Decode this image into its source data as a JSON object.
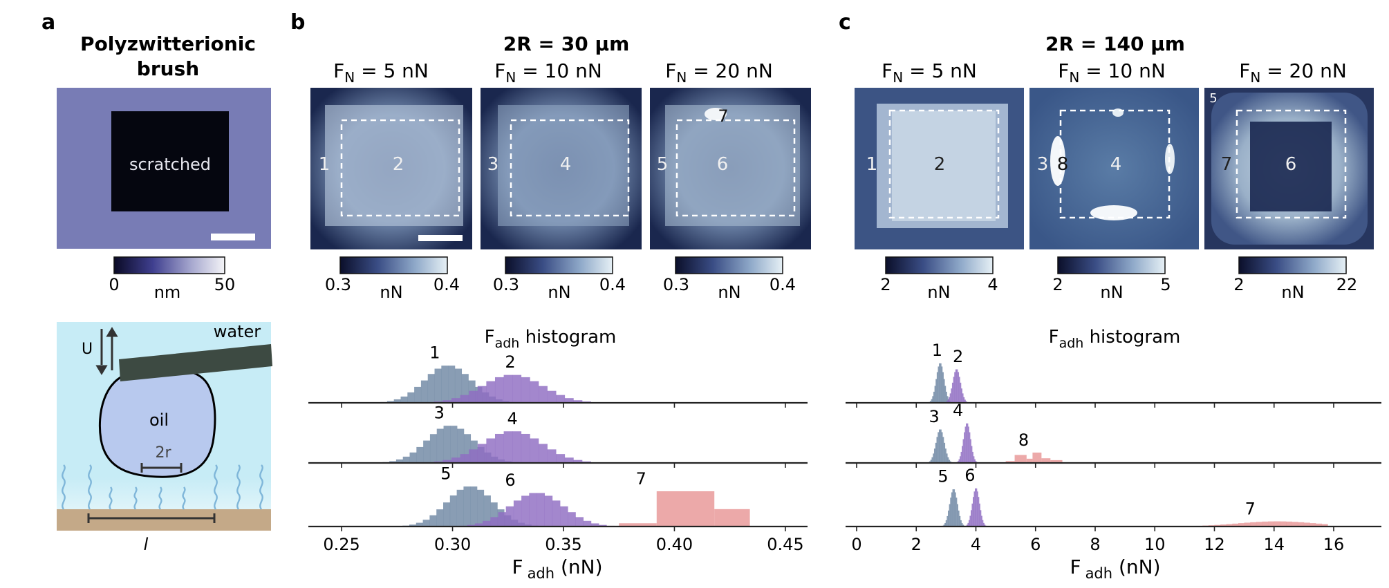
{
  "panel_a": {
    "letter": "a",
    "title_l1": "Polyzwitterionic",
    "title_l2": "brush",
    "scratched": "scratched",
    "cbar_min": "0",
    "cbar_unit": "nm",
    "cbar_max": "50",
    "schematic": {
      "water": "water",
      "U": "U",
      "oil": "oil",
      "r": "2r",
      "l": "l"
    }
  },
  "panel_b": {
    "letter": "b",
    "title": "2R = 30 µm",
    "maps": [
      {
        "fn_prefix": "F",
        "fn_sub": "N",
        "fn_value": " = 5 nN",
        "out_label": "1",
        "in_label": "2",
        "cbar_min": "0.3",
        "cbar_unit": "nN",
        "cbar_max": "0.4"
      },
      {
        "fn_prefix": "F",
        "fn_sub": "N",
        "fn_value": " = 10 nN",
        "out_label": "3",
        "in_label": "4",
        "cbar_min": "0.3",
        "cbar_unit": "nN",
        "cbar_max": "0.4"
      },
      {
        "fn_prefix": "F",
        "fn_sub": "N",
        "fn_value": " = 20 nN",
        "out_label": "5",
        "in_label": "6",
        "extra_label": "7",
        "cbar_min": "0.3",
        "cbar_unit": "nN",
        "cbar_max": "0.4"
      }
    ]
  },
  "panel_c": {
    "letter": "c",
    "title": "2R = 140 µm",
    "maps": [
      {
        "fn_prefix": "F",
        "fn_sub": "N",
        "fn_value": " = 5 nN",
        "out_label": "1",
        "in_label": "2",
        "cbar_min": "2",
        "cbar_unit": "nN",
        "cbar_max": "4"
      },
      {
        "fn_prefix": "F",
        "fn_sub": "N",
        "fn_value": " = 10 nN",
        "out_label": "3",
        "in_label": "4",
        "extra_label": "8",
        "cbar_min": "2",
        "cbar_unit": "nN",
        "cbar_max": "5"
      },
      {
        "fn_prefix": "F",
        "fn_sub": "N",
        "fn_value": " = 20 nN",
        "out_label": "7",
        "in_label": "6",
        "extra_label": "5",
        "cbar_min": "2",
        "cbar_unit": "nN",
        "cbar_max": "22"
      }
    ]
  },
  "colors": {
    "gray_blue": "#6f87a3",
    "purple": "#8f6cc2",
    "pink": "#e89696",
    "overlap": "#4a3f8c",
    "map_dark": "#18244a",
    "map_light": "#dbe9f2"
  },
  "chart_data": [
    {
      "type": "bar",
      "title_main": "F",
      "title_sub": "adh",
      "title_rest": " histogram",
      "xlabel_main": "F",
      "xlabel_sub": "adh",
      "xlabel_rest": " (nN)",
      "xlim": [
        0.24,
        0.46
      ],
      "xticks": [
        "0.25",
        "0.30",
        "0.35",
        "0.40",
        "0.45"
      ],
      "tick_values": [
        0.25,
        0.3,
        0.35,
        0.4,
        0.45
      ],
      "rows": [
        {
          "series": [
            {
              "name": "1",
              "color": "#6f87a3",
              "center": 0.298,
              "sd": 0.0105,
              "peak": 0.8,
              "label_x": 0.292
            },
            {
              "name": "2",
              "color": "#8f6cc2",
              "center": 0.327,
              "sd": 0.0135,
              "peak": 0.6,
              "label_x": 0.326
            }
          ]
        },
        {
          "series": [
            {
              "name": "3",
              "color": "#6f87a3",
              "center": 0.299,
              "sd": 0.0105,
              "peak": 0.8,
              "label_x": 0.294
            },
            {
              "name": "4",
              "color": "#8f6cc2",
              "center": 0.327,
              "sd": 0.0135,
              "peak": 0.68,
              "label_x": 0.327
            }
          ]
        },
        {
          "series": [
            {
              "name": "5",
              "color": "#6f87a3",
              "center": 0.308,
              "sd": 0.0105,
              "peak": 0.86,
              "label_x": 0.297
            },
            {
              "name": "6",
              "color": "#8f6cc2",
              "center": 0.338,
              "sd": 0.012,
              "peak": 0.72,
              "label_x": 0.326
            },
            {
              "name": "7",
              "color": "#e89696",
              "bars": [
                [
                  0.375,
                  0.392,
                  0.07
                ],
                [
                  0.392,
                  0.418,
                  0.75
                ],
                [
                  0.418,
                  0.434,
                  0.37
                ]
              ],
              "label_x": 0.385
            }
          ]
        }
      ]
    },
    {
      "type": "bar",
      "title_main": "F",
      "title_sub": "adh",
      "title_rest": " histogram",
      "xlabel_main": "F",
      "xlabel_sub": "adh",
      "xlabel_rest": " (nN)",
      "xlim": [
        0,
        17.6
      ],
      "xticks": [
        "0",
        "2",
        "4",
        "6",
        "8",
        "10",
        "12",
        "14",
        "16"
      ],
      "tick_values": [
        0,
        2,
        4,
        6,
        8,
        10,
        12,
        14,
        16
      ],
      "rows": [
        {
          "series": [
            {
              "name": "1",
              "color": "#6f87a3",
              "center": 2.8,
              "sd": 0.13,
              "peak": 0.85,
              "label_x": 2.7
            },
            {
              "name": "2",
              "color": "#8f6cc2",
              "center": 3.35,
              "sd": 0.13,
              "peak": 0.72,
              "label_x": 3.4
            }
          ]
        },
        {
          "series": [
            {
              "name": "3",
              "color": "#6f87a3",
              "center": 2.8,
              "sd": 0.14,
              "peak": 0.72,
              "label_x": 2.6
            },
            {
              "name": "4",
              "color": "#8f6cc2",
              "center": 3.7,
              "sd": 0.12,
              "peak": 0.85,
              "label_x": 3.4
            },
            {
              "name": "8",
              "color": "#e89696",
              "bars": [
                [
                  5.0,
                  5.3,
                  0.04
                ],
                [
                  5.3,
                  5.7,
                  0.17
                ],
                [
                  5.7,
                  5.9,
                  0.09
                ],
                [
                  5.9,
                  6.2,
                  0.22
                ],
                [
                  6.2,
                  6.5,
                  0.1
                ],
                [
                  6.5,
                  6.9,
                  0.06
                ]
              ],
              "label_x": 5.6
            }
          ]
        },
        {
          "series": [
            {
              "name": "5",
              "color": "#6f87a3",
              "center": 3.25,
              "sd": 0.13,
              "peak": 0.8,
              "label_x": 2.9
            },
            {
              "name": "6",
              "color": "#8f6cc2",
              "center": 4.0,
              "sd": 0.12,
              "peak": 0.82,
              "label_x": 3.8
            },
            {
              "name": "7",
              "color": "#e89696",
              "center": 14.1,
              "sd": 1.3,
              "peak": 0.11,
              "from": 10.6,
              "to": 15.8,
              "label_x": 13.2
            }
          ]
        }
      ]
    }
  ]
}
